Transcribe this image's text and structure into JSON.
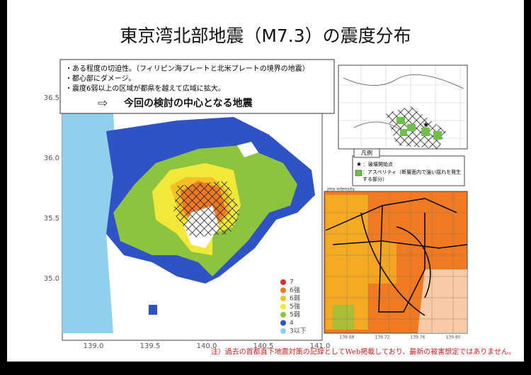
{
  "title": "東京湾北部地震（M7.3）の震度分布",
  "summary": {
    "bullets": [
      "・ある程度の切迫性。（フィリピン海プレートと北米プレートの境界の地震）",
      "・都心部にダメージ。",
      "・震度6弱以上の区域が都県を越えて広域に拡大。"
    ],
    "conclusion": "今回の検討の中心となる地震"
  },
  "main_map": {
    "lat_labels": [
      "36.5",
      "36.0",
      "35.5",
      "35.0"
    ],
    "lon_labels": [
      "139.0",
      "139.5",
      "140.0",
      "140.5",
      "141.0"
    ],
    "legend": [
      {
        "label": "7",
        "color": "#e3262a"
      },
      {
        "label": "6強",
        "color": "#f07a22"
      },
      {
        "label": "6弱",
        "color": "#f5c022"
      },
      {
        "label": "5強",
        "color": "#f2e83a"
      },
      {
        "label": "5弱",
        "color": "#8cc43f"
      },
      {
        "label": "4",
        "color": "#2f52c4"
      },
      {
        "label": "3以下",
        "color": "#8fd0ec"
      }
    ]
  },
  "fault_inset": {
    "legend_title": "凡例",
    "items": [
      "：破壊開始点",
      "：アスペリティ（断層面内で強い揺れを発生する部分）"
    ]
  },
  "zoom_map": {
    "header": "jma intensity",
    "lon_labels": [
      "139.68",
      "139.72",
      "139.76",
      "139.80"
    ]
  },
  "footnote": "注）過去の首都直下地震対策の記録としてWeb掲載しており、最新の被害想定ではありません。"
}
